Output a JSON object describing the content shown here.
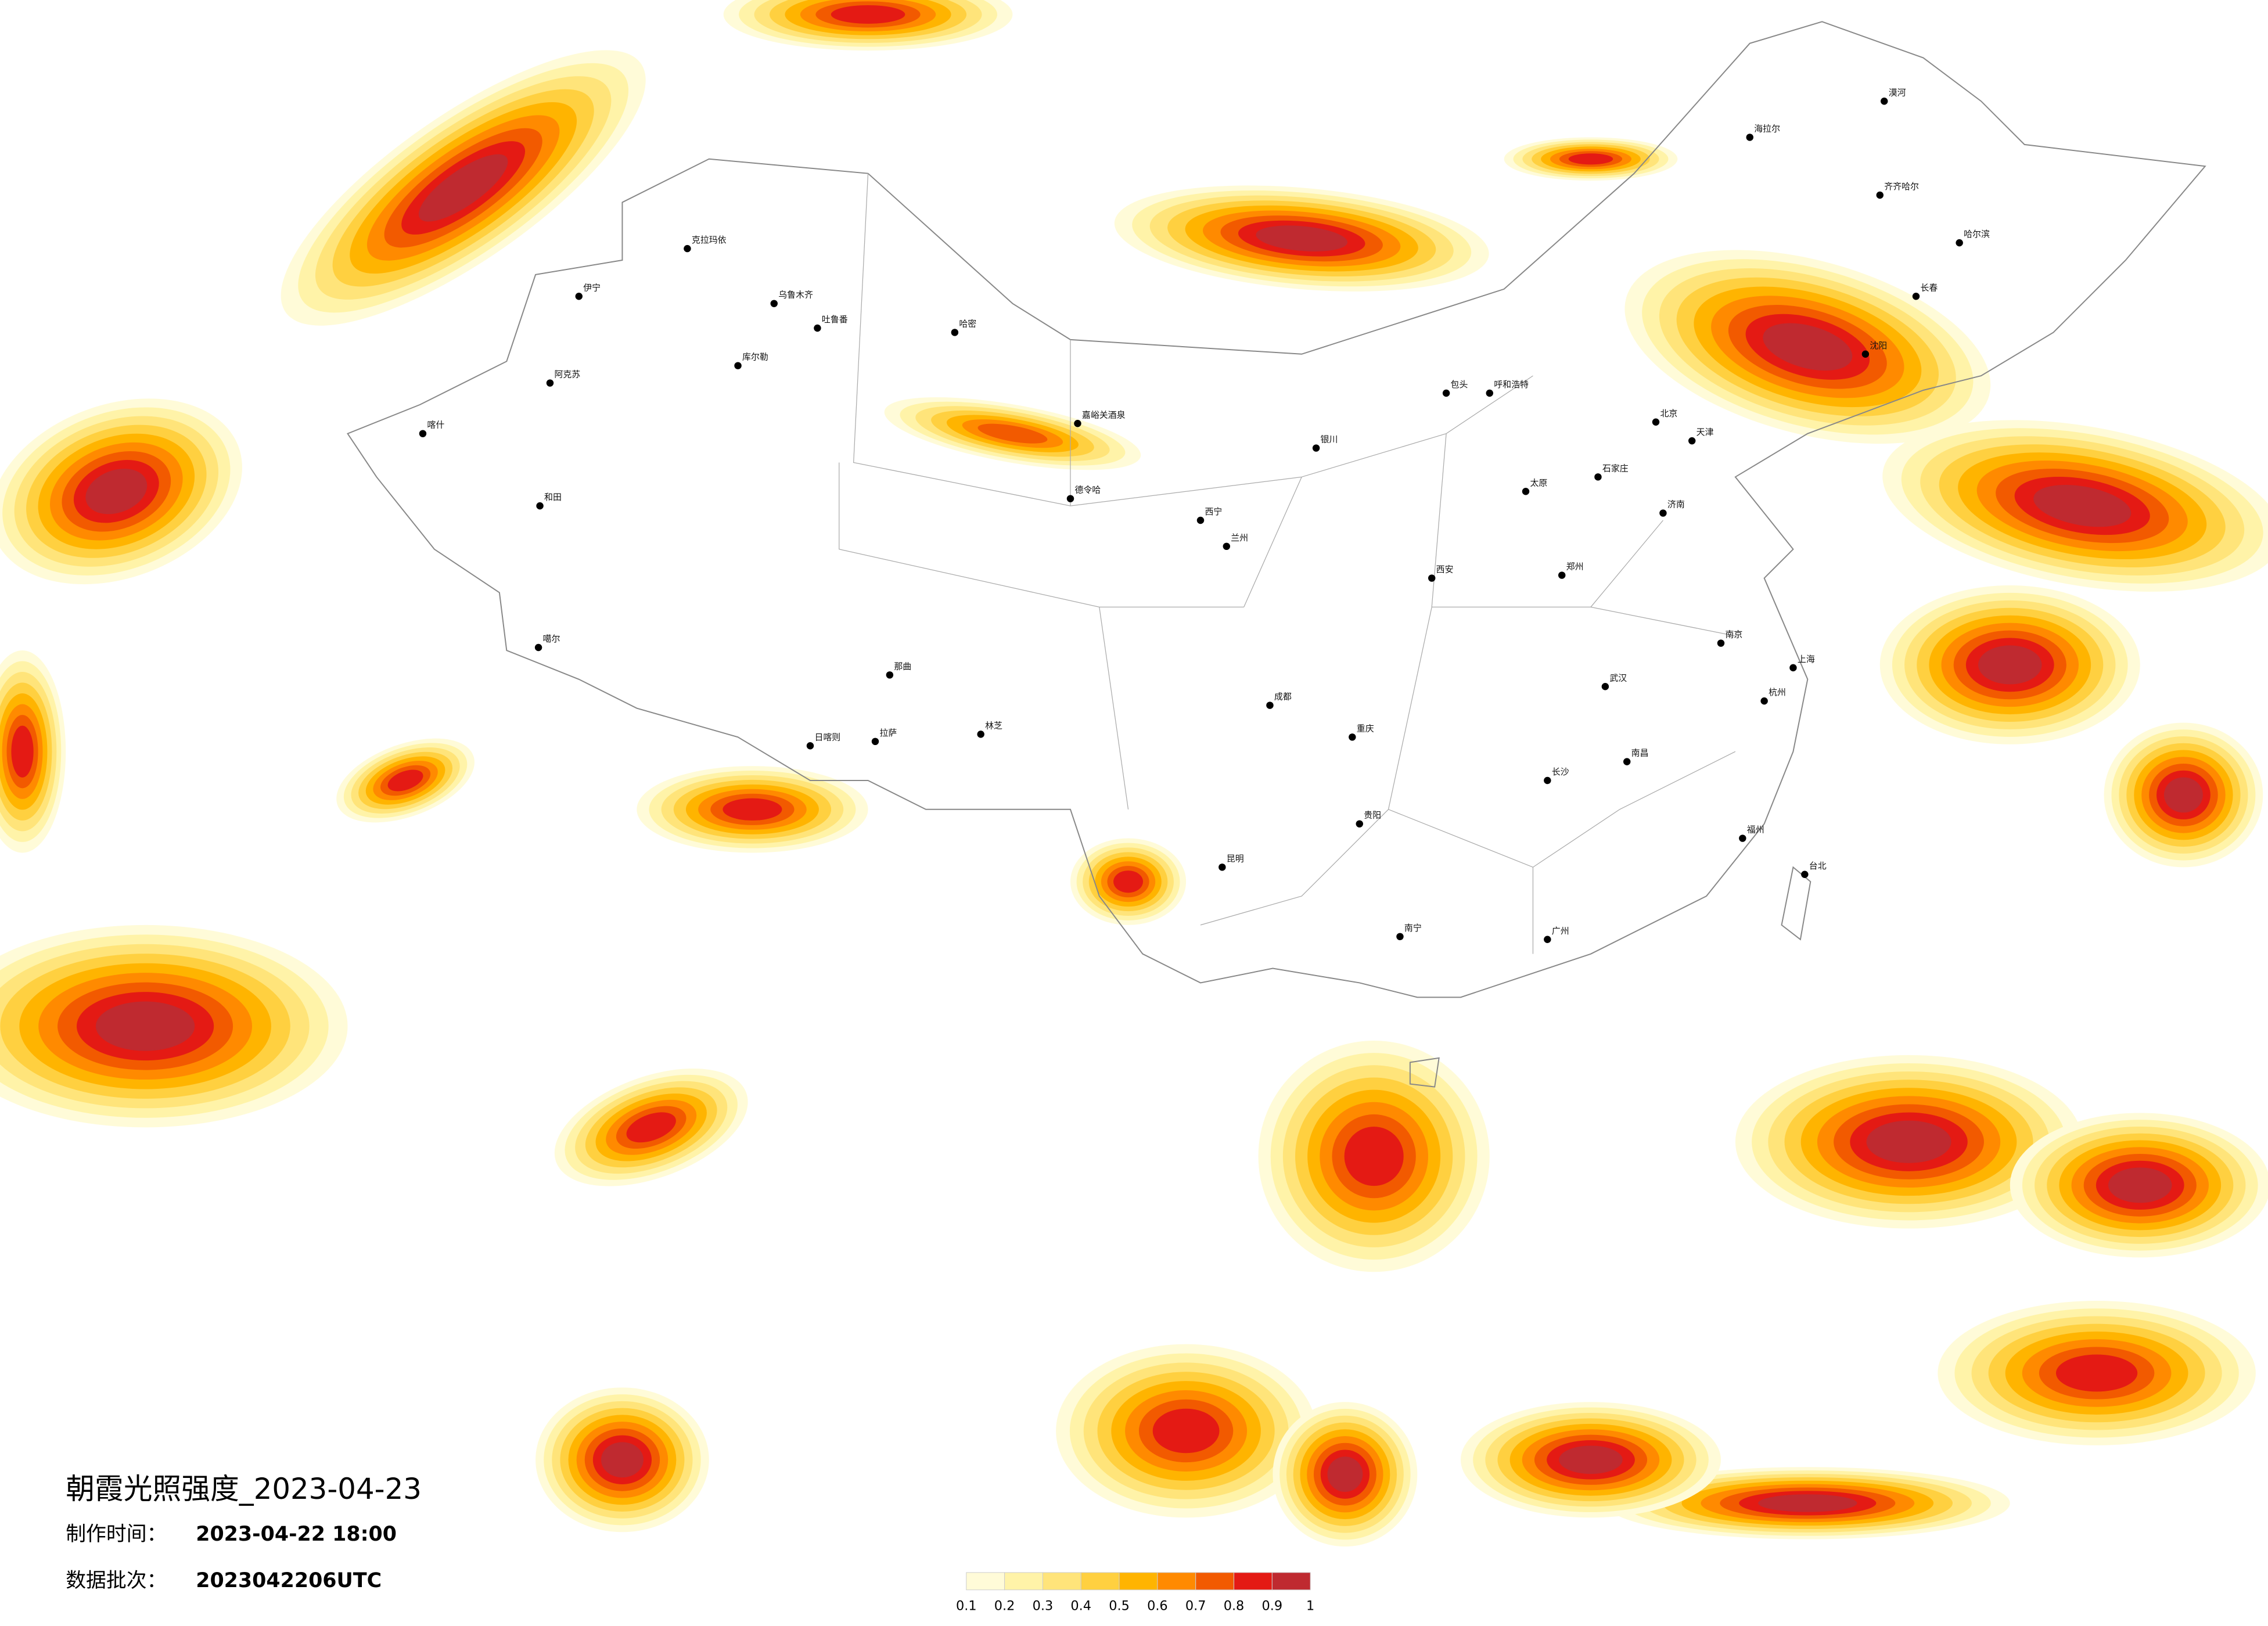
{
  "header": {
    "title": "朝霞光照强度_2023-04-23",
    "made_label": "制作时间：",
    "made_time": "2023-04-22 18:00",
    "batch_label": "数据批次：",
    "batch": "2023042206UTC"
  },
  "legend": {
    "colors": [
      "#fffbd8",
      "#fff3a8",
      "#ffe47a",
      "#ffd040",
      "#ffb400",
      "#ff8a00",
      "#f25a00",
      "#e41a14",
      "#bf2a30"
    ],
    "ticks": [
      0.1,
      0.2,
      0.3,
      0.4,
      0.5,
      0.6,
      0.7,
      0.8,
      0.9,
      1
    ]
  },
  "cities": [
    "克拉玛依",
    "乌鲁木齐",
    "吐鲁番",
    "哈密",
    "伊宁",
    "库尔勒",
    "阿克苏",
    "和田",
    "喀什",
    "噶尔",
    "那曲",
    "拉萨",
    "日喀则",
    "林芝",
    "嘉峪关酒泉",
    "德令哈",
    "西宁",
    "兰州",
    "银川",
    "包头",
    "呼和浩特",
    "北京",
    "天津",
    "石家庄",
    "太原",
    "济南",
    "郑州",
    "西安",
    "成都",
    "重庆",
    "贵阳",
    "昆明",
    "南宁",
    "长沙",
    "武汉",
    "南昌",
    "南京",
    "上海",
    "杭州",
    "福州",
    "广州",
    "台北",
    "哈尔滨",
    "长春",
    "沈阳",
    "海拉尔",
    "齐齐哈尔",
    "漠河"
  ]
}
